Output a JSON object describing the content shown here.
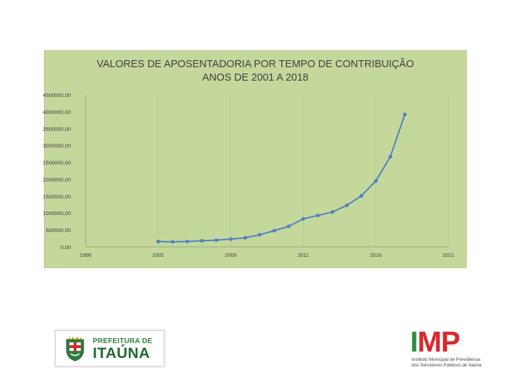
{
  "chart_data": {
    "type": "line",
    "title": "VALORES DE APOSENTADORIA POR TEMPO DE CONTRIBUIÇÃO",
    "subtitle": "ANOS DE 2001 A 2018",
    "xlim": [
      1996,
      2021
    ],
    "ylim": [
      0,
      4500000
    ],
    "x_ticks": [
      "1996",
      "2001",
      "2006",
      "2011",
      "2016",
      "2021"
    ],
    "y_ticks": [
      "4500000,00",
      "4000000,00",
      "3500000,00",
      "3000000,00",
      "2500000,00",
      "2000000,00",
      "1500000,00",
      "1000000,00",
      "500000,00",
      "0,00"
    ],
    "x_tick_values": [
      1996,
      2001,
      2006,
      2011,
      2016,
      2021
    ],
    "y_tick_values": [
      4500000,
      4000000,
      3500000,
      3000000,
      2500000,
      2000000,
      1500000,
      1000000,
      500000,
      0
    ],
    "series": [
      {
        "x": [
          2001,
          2002,
          2003,
          2004,
          2005,
          2006,
          2007,
          2008,
          2009,
          2010,
          2011,
          2012,
          2013,
          2014,
          2015,
          2016,
          2017,
          2018
        ],
        "values": [
          160000,
          150000,
          160000,
          180000,
          200000,
          230000,
          270000,
          360000,
          480000,
          610000,
          830000,
          930000,
          1030000,
          1230000,
          1510000,
          1950000,
          2670000,
          3920000
        ],
        "color": "#4f81bd"
      }
    ],
    "grid": "vertical",
    "legend": "none"
  },
  "logos": {
    "left": {
      "line1": "PREFEITURA DE",
      "line2": "ITAÚNA"
    },
    "right": {
      "acronym_i": "I",
      "acronym_mp": "MP",
      "sub1": "Instituto Municipal de Previdência",
      "sub2": "dos Servidores Públicos de Itaúna"
    }
  }
}
